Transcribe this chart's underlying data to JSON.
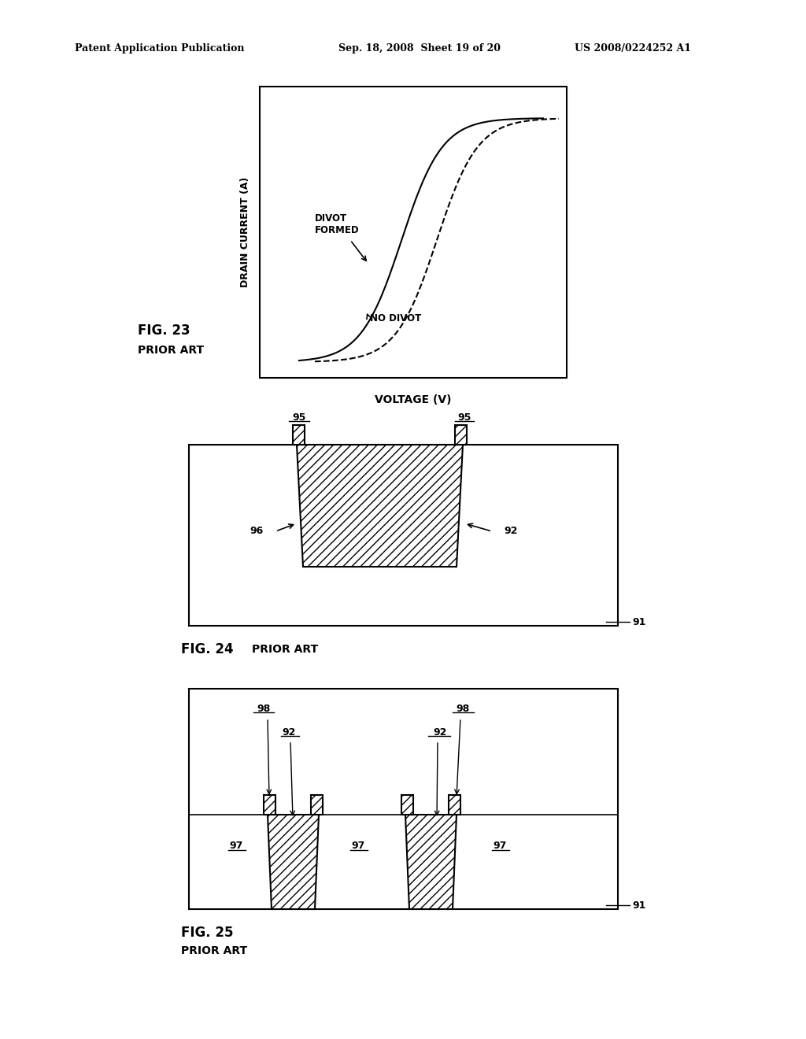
{
  "header_left": "Patent Application Publication",
  "header_mid": "Sep. 18, 2008  Sheet 19 of 20",
  "header_right": "US 2008/0224252 A1",
  "fig23_title": "FIG. 23",
  "fig23_subtitle": "PRIOR ART",
  "fig23_xlabel": "VOLTAGE (V)",
  "fig23_ylabel": "DRAIN CURRENT (A)",
  "fig23_label_divot": "DIVOT\nFORMED",
  "fig23_label_nodivot": "NO DIVOT",
  "fig24_title": "FIG. 24 PRIOR ART",
  "fig24_label_91": "91",
  "fig24_label_92": "92",
  "fig24_label_95a": "95",
  "fig24_label_95b": "95",
  "fig24_label_96": "96",
  "fig25_title": "FIG. 25",
  "fig25_subtitle": "PRIOR ART",
  "fig25_label_91": "91",
  "fig25_label_92a": "92",
  "fig25_label_92b": "92",
  "fig25_label_97a": "97",
  "fig25_label_97b": "97",
  "fig25_label_97c": "97",
  "fig25_label_98a": "98",
  "fig25_label_98b": "98",
  "background_color": "#ffffff",
  "line_color": "#000000",
  "hatch_color": "#000000",
  "text_color": "#000000"
}
